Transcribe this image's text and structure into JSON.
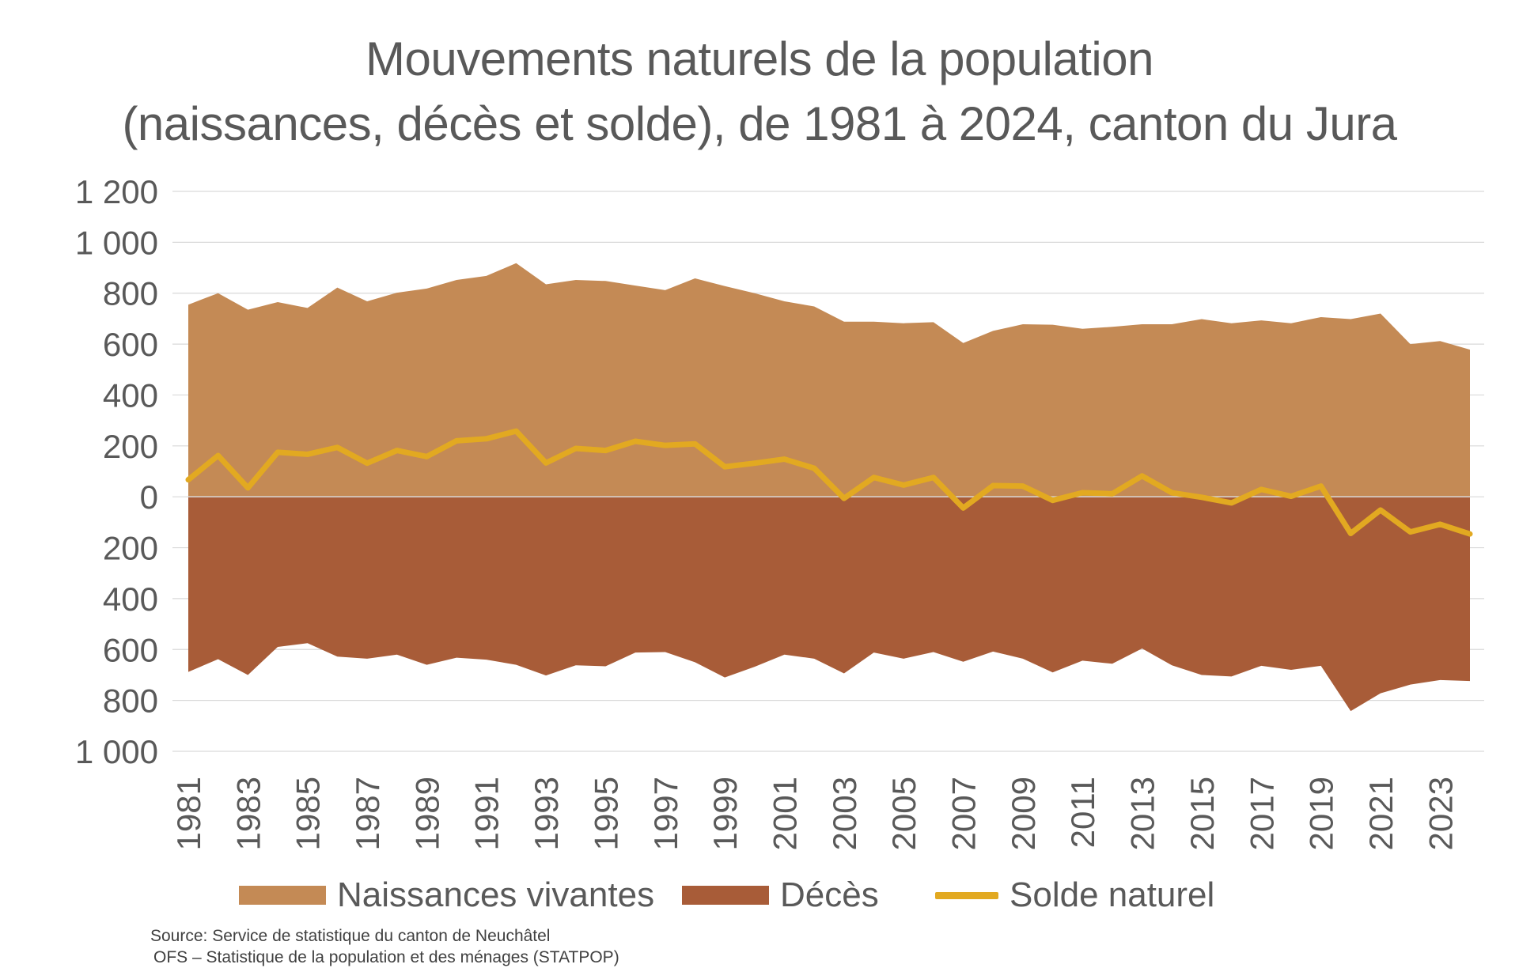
{
  "chart_data": {
    "type": "area",
    "title": "Mouvements naturels de la population",
    "subtitle": "(naissances, décès et solde), de 1981 à 2024, canton du Jura",
    "ylim": [
      -1000,
      1200
    ],
    "y_ticks": [
      1200,
      1000,
      800,
      600,
      400,
      200,
      0,
      -200,
      -400,
      -600,
      -800,
      -1000
    ],
    "y_tick_labels": [
      "1 200",
      "1 000",
      "800",
      "600",
      "400",
      "200",
      "0",
      "200",
      "400",
      "600",
      "800",
      "1 000"
    ],
    "x_tick_labels": [
      "1981",
      "1983",
      "1985",
      "1987",
      "1989",
      "1991",
      "1993",
      "1995",
      "1997",
      "1999",
      "2001",
      "2003",
      "2005",
      "2007",
      "2009",
      "2011",
      "2013",
      "2015",
      "2017",
      "2019",
      "2021",
      "2023"
    ],
    "x": [
      1981,
      1982,
      1983,
      1984,
      1985,
      1986,
      1987,
      1988,
      1989,
      1990,
      1991,
      1992,
      1993,
      1994,
      1995,
      1996,
      1997,
      1998,
      1999,
      2000,
      2001,
      2002,
      2003,
      2004,
      2005,
      2006,
      2007,
      2008,
      2009,
      2010,
      2011,
      2012,
      2013,
      2014,
      2015,
      2016,
      2017,
      2018,
      2019,
      2020,
      2021,
      2022,
      2023,
      2024
    ],
    "grid": true,
    "legend_position": "bottom",
    "series": [
      {
        "name": "Naissances vivantes",
        "kind": "area",
        "color": "#C48A55",
        "values": [
          755,
          800,
          735,
          765,
          742,
          822,
          768,
          802,
          818,
          852,
          868,
          918,
          835,
          852,
          848,
          830,
          812,
          858,
          828,
          800,
          768,
          748,
          688,
          688,
          682,
          686,
          604,
          652,
          678,
          676,
          660,
          668,
          678,
          678,
          698,
          682,
          693,
          682,
          706,
          698,
          720,
          600,
          612,
          578
        ]
      },
      {
        "name": "Décès",
        "kind": "area",
        "color": "#A85C38",
        "values": [
          -688,
          -638,
          -700,
          -590,
          -575,
          -628,
          -636,
          -620,
          -660,
          -632,
          -640,
          -660,
          -702,
          -662,
          -666,
          -612,
          -610,
          -650,
          -710,
          -668,
          -620,
          -636,
          -694,
          -612,
          -636,
          -610,
          -648,
          -608,
          -636,
          -690,
          -644,
          -656,
          -596,
          -662,
          -700,
          -706,
          -664,
          -680,
          -664,
          -842,
          -772,
          -738,
          -720,
          -724
        ]
      },
      {
        "name": "Solde naturel",
        "kind": "line",
        "color": "#E2A921",
        "values": [
          67,
          162,
          35,
          175,
          167,
          194,
          132,
          182,
          158,
          220,
          228,
          258,
          133,
          190,
          182,
          218,
          202,
          208,
          118,
          132,
          148,
          112,
          -6,
          76,
          46,
          76,
          -44,
          44,
          42,
          -14,
          16,
          12,
          82,
          16,
          -2,
          -24,
          29,
          2,
          42,
          -144,
          -52,
          -138,
          -108,
          -146
        ]
      }
    ]
  },
  "source": {
    "line1": "Source: Service de statistique du canton de Neuchâtel",
    "line2": "OFS – Statistique de la population et des ménages (STATPOP)"
  },
  "colors": {
    "grid": "#D9D9D9",
    "axis_text": "#595959",
    "zero_line": "#D9D9D9"
  }
}
